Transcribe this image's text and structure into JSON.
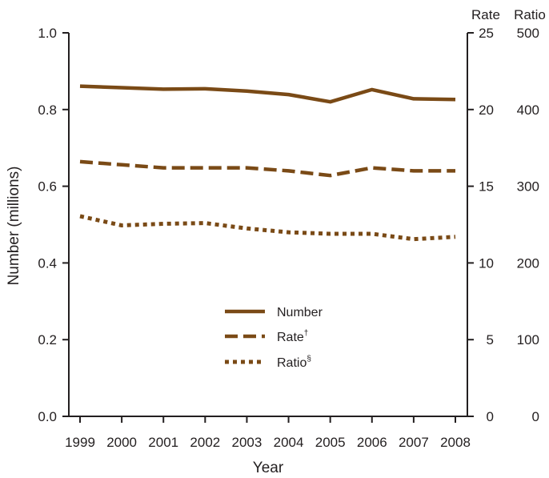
{
  "chart_data": {
    "type": "line",
    "x": [
      1999,
      2000,
      2001,
      2002,
      2003,
      2004,
      2005,
      2006,
      2007,
      2008
    ],
    "xlabel": "Year",
    "ylabel": "Number (millions)",
    "ylim": [
      0,
      1.0
    ],
    "y_ticks": [
      "0.0",
      "0.2",
      "0.4",
      "0.6",
      "0.8",
      "1.0"
    ],
    "right_axes": [
      {
        "title": "Rate",
        "lim": [
          0,
          25
        ],
        "ticks": [
          "0",
          "5",
          "10",
          "15",
          "20",
          "25"
        ]
      },
      {
        "title": "Ratio",
        "lim": [
          0,
          500
        ],
        "ticks": [
          "0",
          "100",
          "200",
          "300",
          "400",
          "500"
        ]
      }
    ],
    "series": [
      {
        "name": "Number",
        "axis": "left",
        "style": "solid",
        "values": [
          0.861,
          0.857,
          0.853,
          0.854,
          0.848,
          0.839,
          0.82,
          0.852,
          0.828,
          0.826
        ]
      },
      {
        "name": "Rate",
        "name_mark": "†",
        "axis": "rate",
        "style": "dashed",
        "values": [
          16.6,
          16.4,
          16.2,
          16.2,
          16.2,
          16.0,
          15.7,
          16.2,
          16.0,
          16.0
        ]
      },
      {
        "name": "Ratio",
        "name_mark": "§",
        "axis": "ratio",
        "style": "dotted",
        "values": [
          261,
          249,
          251,
          252,
          245,
          240,
          238,
          238,
          231,
          234
        ]
      }
    ],
    "legend_position": "lower-center",
    "grid": false,
    "line_color": "#7a4a16"
  }
}
